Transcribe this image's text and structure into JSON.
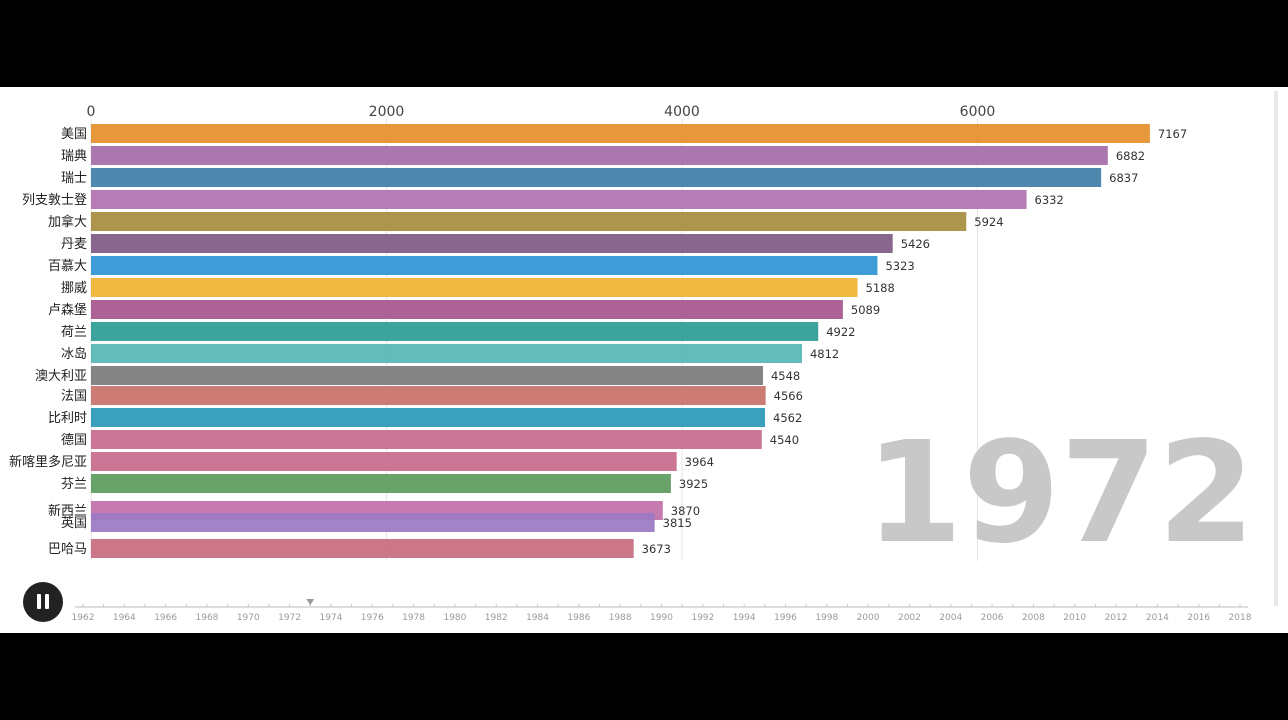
{
  "chart_data": {
    "type": "bar",
    "orientation": "horizontal",
    "title": "",
    "xlabel": "",
    "ylabel": "",
    "xlim": [
      0,
      7200
    ],
    "x_ticks": [
      0,
      2000,
      4000,
      6000
    ],
    "grid": "vertical",
    "year": "1972",
    "categories": [
      "美国",
      "瑞典",
      "瑞士",
      "列支敦士登",
      "加拿大",
      "丹麦",
      "百慕大",
      "挪威",
      "卢森堡",
      "荷兰",
      "冰岛",
      "澳大利亚",
      "法国",
      "比利时",
      "德国",
      "新喀里多尼亚",
      "芬兰",
      "新西兰",
      "英国",
      "巴哈马"
    ],
    "values": [
      7167,
      6882,
      6837,
      6332,
      5924,
      5426,
      5323,
      5188,
      5089,
      4922,
      4812,
      4548,
      4566,
      4562,
      4540,
      3964,
      3925,
      3870,
      3815,
      3673
    ],
    "colors": [
      "#e58f2a",
      "#a36ba8",
      "#3f7ea8",
      "#b071b0",
      "#a78c3f",
      "#7e5a82",
      "#2e95d2",
      "#efb430",
      "#a5558c",
      "#2c9c92",
      "#56b6b4",
      "#7a7a7a",
      "#c97069",
      "#2998b8",
      "#c76a8e",
      "#c86a8c",
      "#5c9b5c",
      "#c070a8",
      "#9b78c2",
      "#c86a80"
    ],
    "timeline": {
      "years": [
        "1962",
        "1964",
        "1966",
        "1968",
        "1970",
        "1972",
        "1974",
        "1976",
        "1978",
        "1980",
        "1982",
        "1984",
        "1986",
        "1988",
        "1990",
        "1992",
        "1994",
        "1996",
        "1998",
        "2000",
        "2002",
        "2004",
        "2006",
        "2008",
        "2010",
        "2012",
        "2014",
        "2016",
        "2018"
      ],
      "current": 1973
    }
  },
  "controls": {
    "pause_icon": "pause-icon"
  }
}
